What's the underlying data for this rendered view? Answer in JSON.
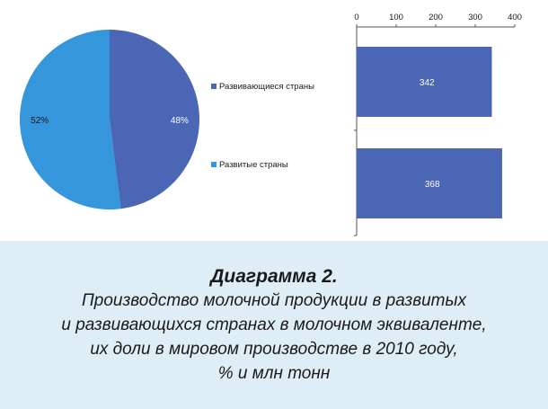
{
  "caption": {
    "title": "Диаграмма 2.",
    "lines": [
      "Производство молочной продукции в развитых",
      "и развивающихся странах в молочном эквиваленте,",
      "их доли в мировом производстве в 2010 году,",
      "% и млн тонн"
    ]
  },
  "colors": {
    "developing": "#4a66b5",
    "developed": "#3596dc",
    "panel": "#ffffff",
    "background": "#dfeef6"
  },
  "chart_data": [
    {
      "type": "pie",
      "slices": [
        {
          "name": "Развивающиеся страны",
          "value": 48,
          "label": "48%",
          "color": "#4a66b5"
        },
        {
          "name": "Развитые страны",
          "value": 52,
          "label": "52%",
          "color": "#3596dc"
        }
      ],
      "legend": {
        "entries": [
          "Развивающиеся страны",
          "Развитые страны"
        ],
        "placement": "right"
      }
    },
    {
      "type": "bar",
      "orientation": "horizontal",
      "categories": [
        "Развивающиеся страны",
        "Развитые страны"
      ],
      "values": [
        342,
        368
      ],
      "value_labels": [
        "342",
        "368"
      ],
      "xlim": [
        0,
        400
      ],
      "xticks": [
        "0",
        "100",
        "200",
        "300",
        "400"
      ],
      "color": "#4a66b5",
      "grid": false
    }
  ]
}
